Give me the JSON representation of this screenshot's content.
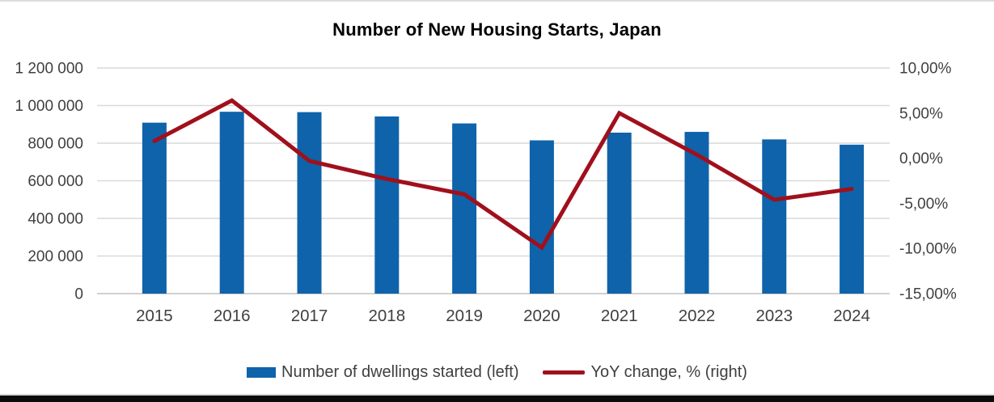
{
  "chart_data": {
    "type": "bar-line-combo",
    "title": "Number of New Housing Starts, Japan",
    "categories": [
      "2015",
      "2016",
      "2017",
      "2018",
      "2019",
      "2020",
      "2021",
      "2022",
      "2023",
      "2024"
    ],
    "series": [
      {
        "name": "Number of dwellings started (left)",
        "type": "bar",
        "axis": "left",
        "values": [
          909000,
          967000,
          965000,
          942000,
          905000,
          815000,
          856000,
          860000,
          820000,
          792000
        ],
        "color": "#0F63AA"
      },
      {
        "name": "YoY change, % (right)",
        "type": "line",
        "axis": "right",
        "values": [
          1.9,
          6.4,
          -0.3,
          -2.3,
          -4.0,
          -9.9,
          5.0,
          0.4,
          -4.6,
          -3.4
        ],
        "color": "#A0101C"
      }
    ],
    "left_axis": {
      "min": 0,
      "max": 1200000,
      "tick_step": 200000,
      "tick_labels": [
        "0",
        "200 000",
        "400 000",
        "600 000",
        "800 000",
        "1 000 000",
        "1 200 000"
      ]
    },
    "right_axis": {
      "min": -15,
      "max": 10,
      "tick_step": 5,
      "tick_labels": [
        "-15,00%",
        "-10,00%",
        "-5,00%",
        "0,00%",
        "5,00%",
        "10,00%"
      ]
    },
    "grid": true,
    "legend_position": "bottom",
    "styles": {
      "gridline_color": "#d9d9d9",
      "baseline_color": "#c0c0c0",
      "tick_text_color": "#404040",
      "title_color": "#000000"
    }
  }
}
